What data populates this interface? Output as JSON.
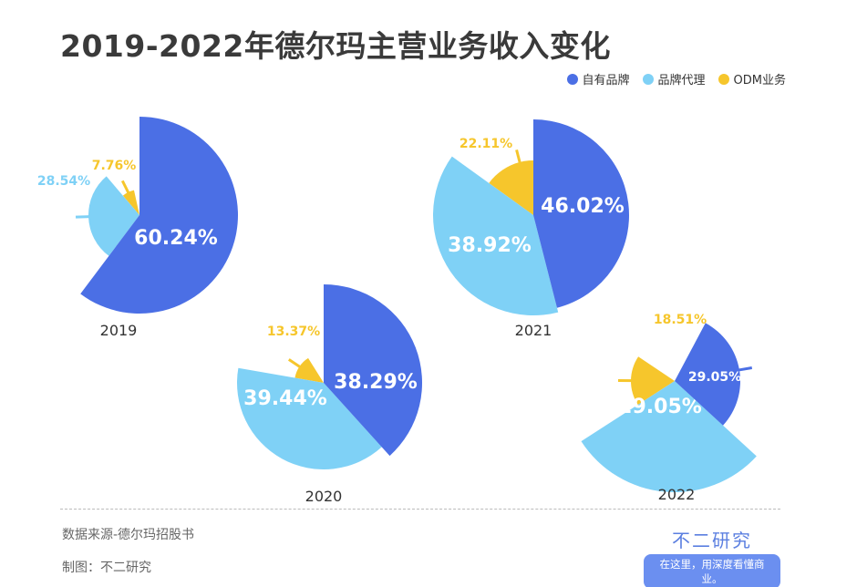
{
  "title": "2019-2022年德尔玛主营业务收入变化",
  "legend": [
    {
      "name": "自有品牌",
      "color": "#4b6fe5"
    },
    {
      "name": "品牌代理",
      "color": "#7fd1f6"
    },
    {
      "name": "ODM业务",
      "color": "#f6c62c"
    }
  ],
  "chart_data": {
    "type": "pie",
    "variant": "rose (radius varies per slice)",
    "series_names": [
      "自有品牌",
      "品牌代理",
      "ODM业务"
    ],
    "pies": [
      {
        "year": "2019",
        "values": [
          60.24,
          28.54,
          7.76
        ],
        "labels": [
          "60.24%",
          "28.54%",
          "7.76%"
        ]
      },
      {
        "year": "2020",
        "values": [
          38.29,
          39.44,
          13.37
        ],
        "labels": [
          "38.29%",
          "39.44%",
          "13.37%"
        ]
      },
      {
        "year": "2021",
        "values": [
          46.02,
          38.92,
          22.11
        ],
        "labels": [
          "46.02%",
          "38.92%",
          "22.11%"
        ]
      },
      {
        "year": "2022",
        "values": [
          29.05,
          29.05,
          18.51
        ],
        "labels": [
          "29.05%",
          "29.05%",
          "18.51%"
        ]
      }
    ]
  },
  "footer": {
    "source": "数据来源-德尔玛招股书",
    "maker": "制图：不二研究",
    "brand": "不二研究",
    "slogan": "在这里，用深度看懂商业。"
  }
}
